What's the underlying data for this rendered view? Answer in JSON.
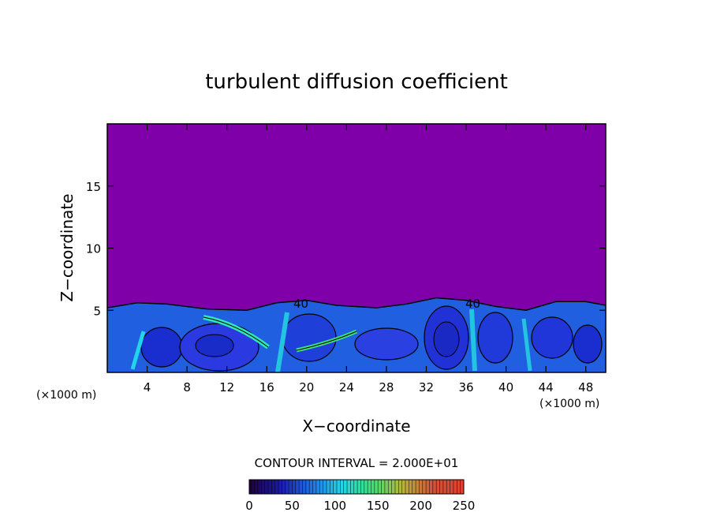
{
  "chart_data": {
    "type": "heatmap",
    "title": "turbulent diffusion coefficient",
    "xlabel": "X−coordinate",
    "ylabel": "Z−coordinate",
    "x_unit_left": "(×1000 m)",
    "x_unit_right": "(×1000 m)",
    "xlim": [
      0,
      50
    ],
    "ylim": [
      0,
      20
    ],
    "x_ticks": [
      4,
      8,
      12,
      16,
      20,
      24,
      28,
      32,
      36,
      40,
      44,
      48
    ],
    "y_ticks": [
      5,
      10,
      15
    ],
    "contour_interval_text": "CONTOUR INTERVAL = 2.000E+01",
    "contour_labels": [
      "40",
      "40"
    ],
    "colorbar": {
      "min": 0,
      "max": 250,
      "ticks": [
        0,
        50,
        100,
        150,
        200,
        250
      ],
      "colors": [
        "#200040",
        "#1a1aa8",
        "#1f6ee6",
        "#22d4e8",
        "#3de07a",
        "#b8b43a",
        "#d0523a",
        "#e04030"
      ]
    },
    "background_value_color": "#7f00a8",
    "turbulent_layer_top_km": [
      5.2,
      5.6,
      5.5,
      5.1,
      5.0,
      5.6,
      5.8,
      5.4,
      5.2,
      5.5,
      6.0,
      5.8,
      5.3,
      5.0,
      5.7,
      5.7,
      5.4
    ],
    "turbulent_layer_top_x_km": [
      0,
      3,
      6,
      10,
      14,
      17,
      20,
      23,
      27,
      30,
      33,
      36,
      39,
      42,
      45,
      48,
      50
    ]
  }
}
